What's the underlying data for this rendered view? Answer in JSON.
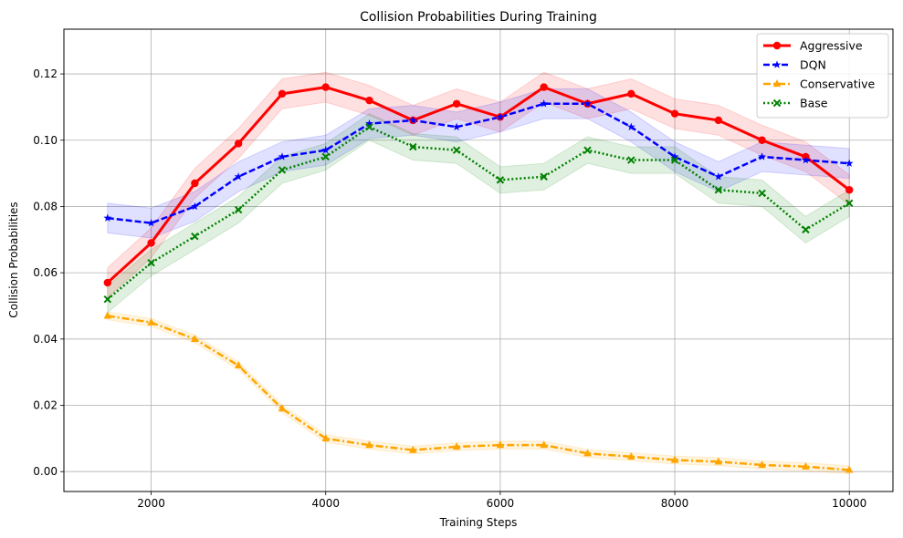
{
  "chart_data": {
    "type": "line",
    "title": "Collision Probabilities During Training",
    "xlabel": "Training Steps",
    "ylabel": "Collision Probabilities",
    "xlim": [
      1000,
      10500
    ],
    "ylim": [
      -0.006,
      0.1335
    ],
    "grid": true,
    "legend_position": "top-right",
    "x_ticks": [
      2000,
      4000,
      6000,
      8000,
      10000
    ],
    "x_tick_labels": [
      "2000",
      "4000",
      "6000",
      "8000",
      "10000"
    ],
    "y_ticks": [
      0.0,
      0.02,
      0.04,
      0.06,
      0.08,
      0.1,
      0.12
    ],
    "y_tick_labels": [
      "0.00",
      "0.02",
      "0.04",
      "0.06",
      "0.08",
      "0.10",
      "0.12"
    ],
    "x": [
      1500,
      2000,
      2500,
      3000,
      3500,
      4000,
      4500,
      5000,
      5500,
      6000,
      6500,
      7000,
      7500,
      8000,
      8500,
      9000,
      9500,
      10000
    ],
    "series": [
      {
        "name": "Aggressive",
        "color": "#ff0000",
        "marker": "circle",
        "linestyle": "solid",
        "band": 0.0045,
        "values": [
          0.057,
          0.069,
          0.087,
          0.099,
          0.114,
          0.116,
          0.112,
          0.106,
          0.111,
          0.107,
          0.116,
          0.111,
          0.114,
          0.108,
          0.106,
          0.1,
          0.095,
          0.085
        ]
      },
      {
        "name": "DQN",
        "color": "#0000ff",
        "marker": "star",
        "linestyle": "dashed",
        "band": 0.0045,
        "values": [
          0.0765,
          0.075,
          0.08,
          0.089,
          0.095,
          0.097,
          0.105,
          0.106,
          0.104,
          0.107,
          0.111,
          0.111,
          0.104,
          0.095,
          0.089,
          0.095,
          0.094,
          0.093
        ]
      },
      {
        "name": "Conservative",
        "color": "#ffa500",
        "marker": "triangle",
        "linestyle": "dashdot",
        "band": 0.0012,
        "values": [
          0.047,
          0.045,
          0.04,
          0.032,
          0.019,
          0.01,
          0.008,
          0.0065,
          0.0075,
          0.008,
          0.008,
          0.0055,
          0.0045,
          0.0035,
          0.003,
          0.002,
          0.0015,
          0.0005
        ]
      },
      {
        "name": "Base",
        "color": "#008000",
        "marker": "x",
        "linestyle": "dotted",
        "band": 0.004,
        "values": [
          0.052,
          0.063,
          0.071,
          0.079,
          0.091,
          0.095,
          0.104,
          0.098,
          0.097,
          0.088,
          0.089,
          0.097,
          0.094,
          0.094,
          0.085,
          0.084,
          0.073,
          0.081
        ]
      }
    ]
  }
}
